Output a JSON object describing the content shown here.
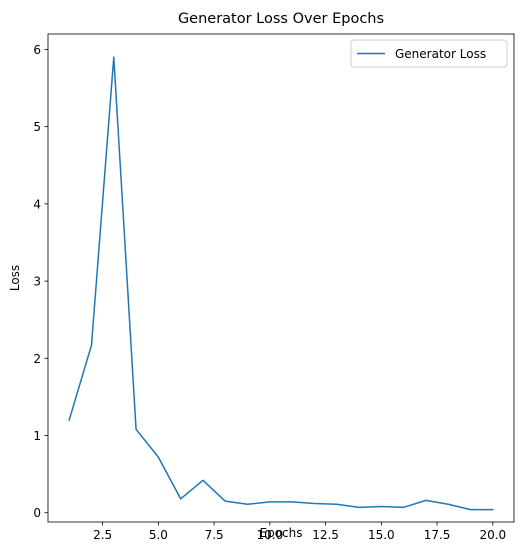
{
  "chart_data": {
    "type": "line",
    "title": "Generator Loss Over Epochs",
    "xlabel": "Epochs",
    "ylabel": "Loss",
    "xlim": [
      0.05,
      20.95
    ],
    "ylim": [
      -0.12,
      6.2
    ],
    "xticks": [
      2.5,
      5.0,
      7.5,
      10.0,
      12.5,
      15.0,
      17.5,
      20.0
    ],
    "xtick_labels": [
      "2.5",
      "5.0",
      "7.5",
      "10.0",
      "12.5",
      "15.0",
      "17.5",
      "20.0"
    ],
    "yticks": [
      0,
      1,
      2,
      3,
      4,
      5,
      6
    ],
    "ytick_labels": [
      "0",
      "1",
      "2",
      "3",
      "4",
      "5",
      "6"
    ],
    "grid": false,
    "legend_position": "top-right",
    "series": [
      {
        "name": "Generator Loss",
        "color": "#1f77b4",
        "x": [
          1,
          2,
          3,
          4,
          5,
          6,
          7,
          8,
          9,
          10,
          11,
          12,
          13,
          14,
          15,
          16,
          17,
          18,
          19,
          20
        ],
        "values": [
          1.2,
          2.17,
          5.9,
          1.08,
          0.72,
          0.18,
          0.42,
          0.15,
          0.11,
          0.14,
          0.14,
          0.12,
          0.11,
          0.07,
          0.08,
          0.07,
          0.16,
          0.11,
          0.04,
          0.04
        ]
      }
    ]
  }
}
